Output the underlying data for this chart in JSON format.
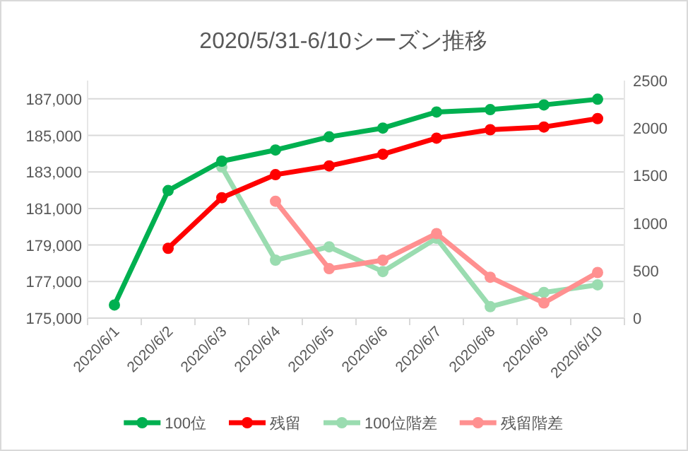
{
  "chart_data": {
    "type": "line",
    "title": "2020/5/31-6/10シーズン推移",
    "categories": [
      "2020/6/1",
      "2020/6/2",
      "2020/6/3",
      "2020/6/4",
      "2020/6/5",
      "2020/6/6",
      "2020/6/7",
      "2020/6/8",
      "2020/6/9",
      "2020/6/10"
    ],
    "series": [
      {
        "name": "100位",
        "color": "#00b050",
        "values": [
          175720,
          181980,
          183590,
          184200,
          184920,
          185400,
          186280,
          186410,
          186670,
          186980
        ]
      },
      {
        "name": "残留",
        "color": "#ff0000",
        "values": [
          null,
          178820,
          181590,
          182850,
          183330,
          183970,
          184850,
          185310,
          185460,
          185920
        ]
      },
      {
        "name": "100位階差",
        "color": "#9adcb0",
        "axis": "y2",
        "values": [
          null,
          null,
          1590,
          610,
          750,
          490,
          840,
          120,
          270,
          350
        ]
      },
      {
        "name": "残留階差",
        "color": "#ff9090",
        "axis": "y2",
        "values": [
          null,
          null,
          null,
          1230,
          520,
          610,
          890,
          430,
          160,
          480
        ]
      }
    ],
    "ylim": [
      175000,
      188000
    ],
    "yticks": [
      {
        "value": 175000,
        "label": "175,000"
      },
      {
        "value": 177000,
        "label": "177,000"
      },
      {
        "value": 179000,
        "label": "179,000"
      },
      {
        "value": 181000,
        "label": "181,000"
      },
      {
        "value": 183000,
        "label": "183,000"
      },
      {
        "value": 185000,
        "label": "185,000"
      },
      {
        "value": 187000,
        "label": "187,000"
      }
    ],
    "y2lim": [
      0,
      2500
    ],
    "y2ticks": [
      0,
      500,
      1000,
      1500,
      2000,
      2500
    ],
    "grid": "y",
    "legend": "bottom",
    "marker": "circle",
    "line_style": "solid"
  }
}
